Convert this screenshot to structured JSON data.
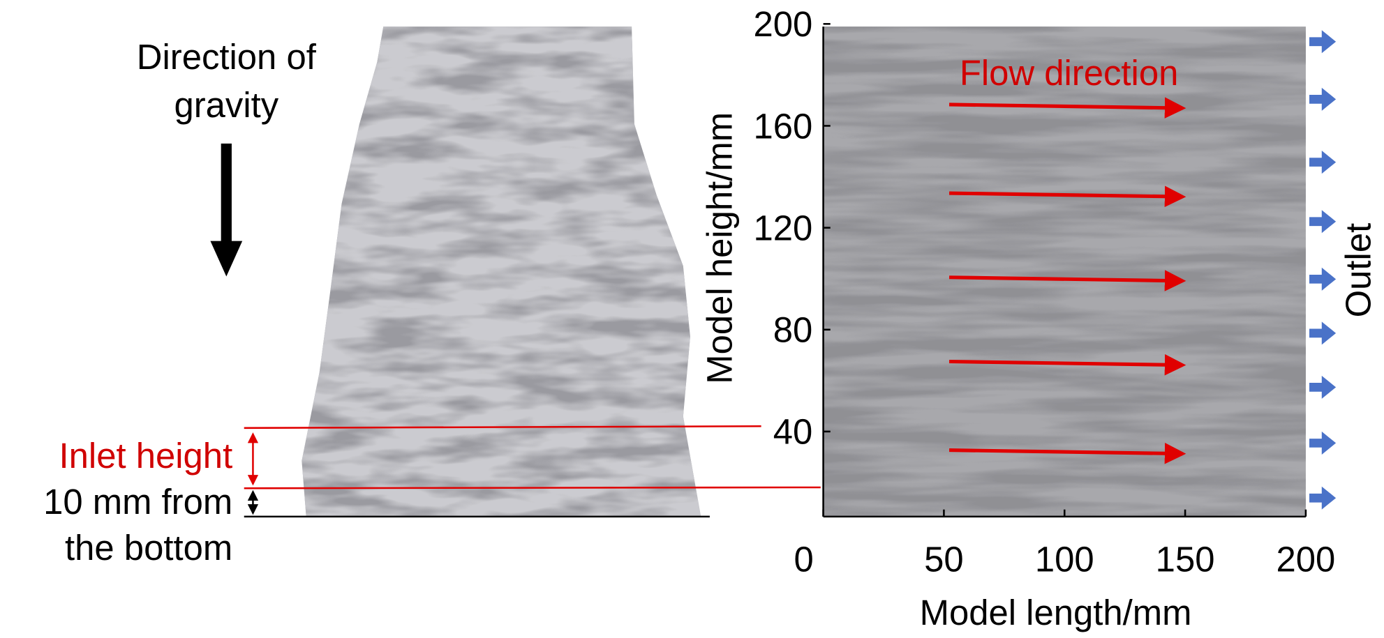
{
  "left_panel": {
    "gravity_label": [
      "Direction of",
      "gravity"
    ],
    "inlet_label": "Inlet height",
    "bottom_label": [
      "10 mm from",
      "the bottom"
    ]
  },
  "right_panel": {
    "flow_label": "Flow direction",
    "outlet_label": "Outlet",
    "x_axis": {
      "title": "Model length/mm",
      "lim": [
        0,
        200
      ],
      "ticks": [
        0,
        50,
        100,
        150,
        200
      ]
    },
    "y_axis": {
      "title": "Model height/mm",
      "lim": [
        0,
        200
      ],
      "ticks": [
        40,
        80,
        120,
        160,
        200
      ]
    }
  }
}
